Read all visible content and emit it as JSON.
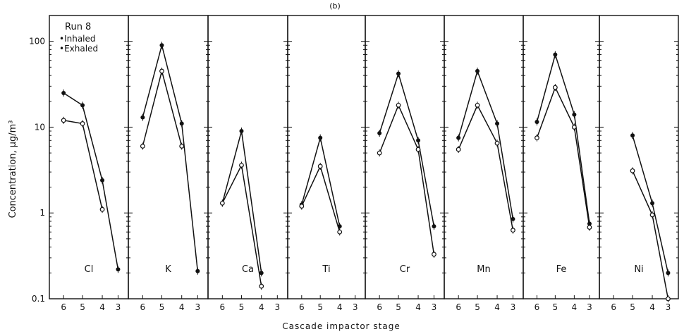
{
  "figure": {
    "panel_letter": "(b)",
    "ylabel": "Concentration, μg/m³",
    "xlabel": "Cascade impactor stage"
  },
  "legend": {
    "run": "Run 8",
    "entries": [
      "•Inhaled",
      "•Exhaled"
    ]
  },
  "y_ticks": [
    {
      "value": 0.1,
      "label": "0.1"
    },
    {
      "value": 1,
      "label": "1"
    },
    {
      "value": 10,
      "label": "10"
    },
    {
      "value": 100,
      "label": "100"
    }
  ],
  "chart_data": {
    "type": "line",
    "y_scale": "log",
    "ylim": [
      0.1,
      200
    ],
    "categories": [
      "6",
      "5",
      "4",
      "3"
    ],
    "xlabel": "Cascade impactor stage",
    "ylabel": "Concentration, μg/m³",
    "legend": [
      "Inhaled",
      "Exhaled"
    ],
    "panels": [
      {
        "element": "Cl",
        "label": "Cl",
        "series": [
          {
            "name": "Inhaled",
            "values": [
              25,
              18,
              2.4,
              0.22
            ]
          },
          {
            "name": "Exhaled",
            "values": [
              12,
              11,
              1.1,
              null
            ]
          }
        ]
      },
      {
        "element": "K",
        "label": "K",
        "series": [
          {
            "name": "Inhaled",
            "values": [
              13,
              90,
              11,
              0.21
            ]
          },
          {
            "name": "Exhaled",
            "values": [
              6,
              45,
              6,
              null
            ]
          }
        ]
      },
      {
        "element": "Ca",
        "label": "Ca",
        "series": [
          {
            "name": "Inhaled",
            "values": [
              1.3,
              9,
              0.2,
              null
            ]
          },
          {
            "name": "Exhaled",
            "values": [
              1.3,
              3.6,
              0.14,
              null
            ]
          }
        ]
      },
      {
        "element": "Ti",
        "label": "Ti",
        "series": [
          {
            "name": "Inhaled",
            "values": [
              1.25,
              7.5,
              0.7,
              null
            ]
          },
          {
            "name": "Exhaled",
            "values": [
              1.2,
              3.5,
              0.6,
              null
            ]
          }
        ]
      },
      {
        "element": "Cr",
        "label": "Cr",
        "series": [
          {
            "name": "Inhaled",
            "values": [
              8.5,
              42,
              7,
              0.7
            ]
          },
          {
            "name": "Exhaled",
            "values": [
              5,
              18,
              5.5,
              0.33
            ]
          }
        ]
      },
      {
        "element": "Mn",
        "label": "Mn",
        "series": [
          {
            "name": "Inhaled",
            "values": [
              7.5,
              45,
              11,
              0.85
            ]
          },
          {
            "name": "Exhaled",
            "values": [
              5.5,
              18,
              6.5,
              0.63
            ]
          }
        ]
      },
      {
        "element": "Fe",
        "label": "Fe",
        "series": [
          {
            "name": "Inhaled",
            "values": [
              11.5,
              70,
              14,
              0.75
            ]
          },
          {
            "name": "Exhaled",
            "values": [
              7.5,
              29,
              10,
              0.68
            ]
          }
        ]
      },
      {
        "element": "Ni",
        "label": "Ni",
        "series": [
          {
            "name": "Inhaled",
            "values": [
              null,
              8,
              1.3,
              0.2
            ]
          },
          {
            "name": "Exhaled",
            "values": [
              null,
              3.1,
              0.95,
              0.1
            ]
          }
        ]
      }
    ]
  }
}
